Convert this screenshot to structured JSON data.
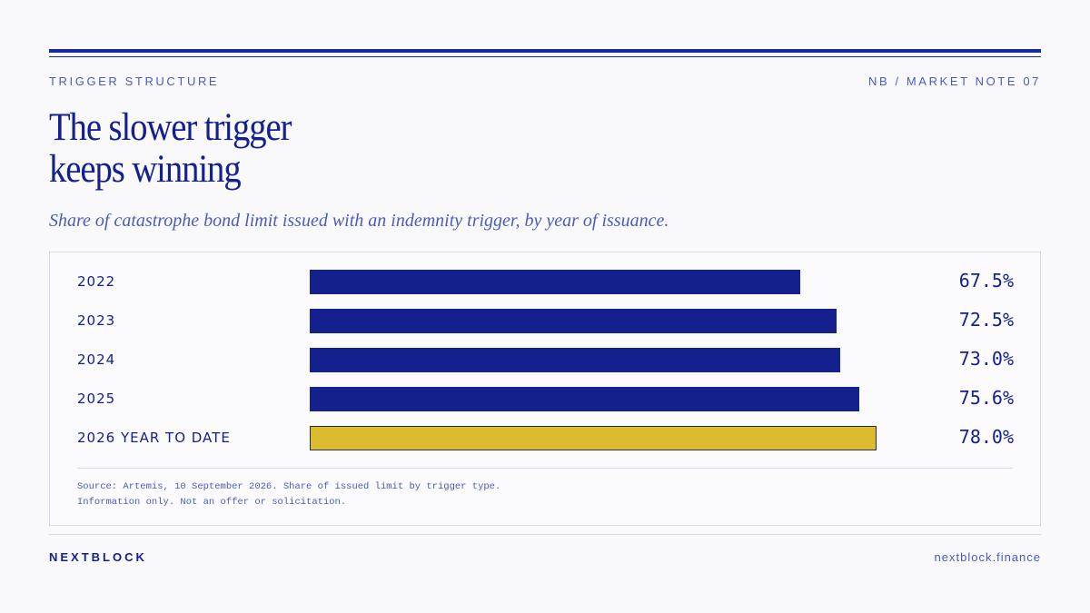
{
  "header": {
    "eyebrow_left": "TRIGGER STRUCTURE",
    "eyebrow_right": "NB / MARKET NOTE 07"
  },
  "title_lines": [
    "The slower trigger",
    "keeps winning"
  ],
  "subtitle": "Share of catastrophe bond limit issued with an indemnity trigger, by year of issuance.",
  "chart_data": {
    "type": "bar",
    "orientation": "horizontal",
    "categories": [
      "2022",
      "2023",
      "2024",
      "2025",
      "2026 YEAR TO DATE"
    ],
    "values": [
      67.5,
      72.5,
      73.0,
      75.6,
      78.0
    ],
    "value_labels": [
      "67.5%",
      "72.5%",
      "73.0%",
      "75.6%",
      "78.0%"
    ],
    "unit": "%",
    "xlim": [
      0,
      100
    ],
    "highlight_index": 4,
    "colors": {
      "bar": "#15208f",
      "highlight": "#ddbb30"
    },
    "grid": false,
    "legend": "none"
  },
  "source_lines": [
    "Source: Artemis, 10 September 2026. Share of issued limit by trigger type.",
    "Information only. Not an offer or solicitation."
  ],
  "footer": {
    "brand": "NEXTBLOCK",
    "site": "nextblock.finance"
  }
}
